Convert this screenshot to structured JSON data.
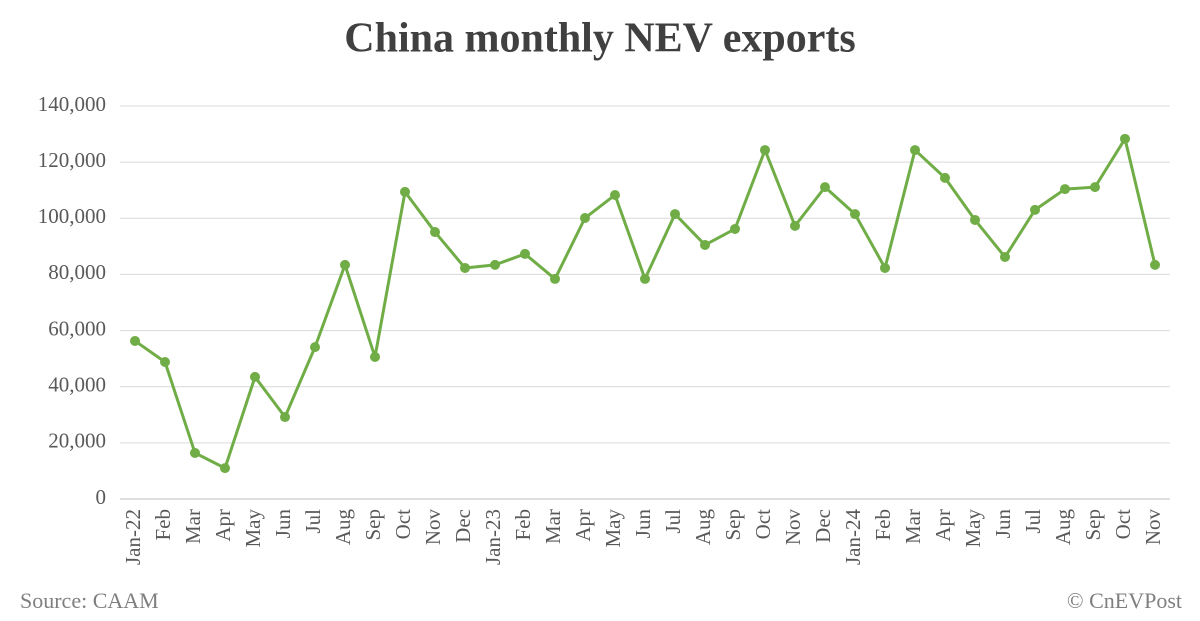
{
  "chart_data": {
    "type": "line",
    "title": "China monthly NEV exports",
    "categories": [
      "Jan-22",
      "Feb",
      "Mar",
      "Apr",
      "May",
      "Jun",
      "Jul",
      "Aug",
      "Sep",
      "Oct",
      "Nov",
      "Dec",
      "Jan-23",
      "Feb",
      "Mar",
      "Apr",
      "May",
      "Jun",
      "Jul",
      "Aug",
      "Sep",
      "Oct",
      "Nov",
      "Dec",
      "Jan-24",
      "Feb",
      "Mar",
      "Apr",
      "May",
      "Jun",
      "Jul",
      "Aug",
      "Sep",
      "Oct",
      "Nov"
    ],
    "values": [
      56300,
      48800,
      16400,
      11000,
      43500,
      29200,
      54100,
      83400,
      50600,
      109400,
      95100,
      82300,
      83400,
      87300,
      78400,
      100100,
      108300,
      78400,
      101500,
      90500,
      96200,
      124300,
      97300,
      111100,
      101500,
      82300,
      124300,
      114400,
      99400,
      86200,
      103000,
      110400,
      111100,
      128300,
      83400
    ],
    "color": "#70ad47",
    "ylim": [
      0,
      140000
    ],
    "yticks": [
      0,
      {
        "value": 20000,
        "label": "20,000"
      },
      {
        "value": 40000,
        "label": "40,000"
      },
      {
        "value": 60000,
        "label": "60,000"
      },
      {
        "value": 80000,
        "label": "80,000"
      },
      {
        "value": 100000,
        "label": "100,000"
      },
      {
        "value": 120000,
        "label": "120,000"
      },
      {
        "value": 140000,
        "label": "140,000"
      }
    ],
    "grid": true,
    "source": "Source: CAAM",
    "credit": "© CnEVPost"
  }
}
